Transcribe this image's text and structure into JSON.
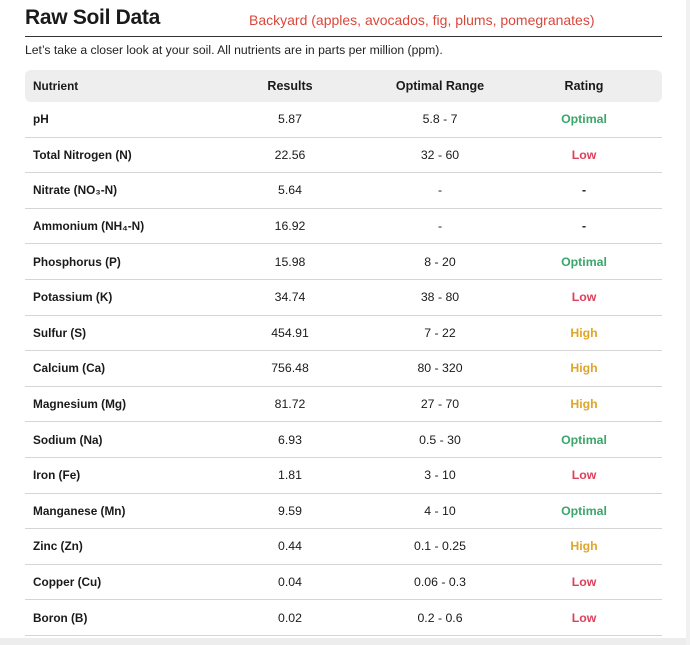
{
  "header": {
    "title": "Raw Soil Data",
    "location": "Backyard (apples, avocados, fig, plums, pomegranates)"
  },
  "intro": "Let’s take a closer look at your soil. All nutrients are in parts per million (ppm).",
  "table": {
    "columns": [
      "Nutrient",
      "Results",
      "Optimal Range",
      "Rating"
    ],
    "rows": [
      {
        "nutrient": "pH",
        "result": "5.87",
        "range": "5.8 - 7",
        "rating": "Optimal"
      },
      {
        "nutrient": "Total Nitrogen (N)",
        "result": "22.56",
        "range": "32 - 60",
        "rating": "Low"
      },
      {
        "nutrient": "Nitrate (NO₃-N)",
        "result": "5.64",
        "range": "-",
        "rating": "-"
      },
      {
        "nutrient": "Ammonium (NH₄-N)",
        "result": "16.92",
        "range": "-",
        "rating": "-"
      },
      {
        "nutrient": "Phosphorus (P)",
        "result": "15.98",
        "range": "8 - 20",
        "rating": "Optimal"
      },
      {
        "nutrient": "Potassium (K)",
        "result": "34.74",
        "range": "38 - 80",
        "rating": "Low"
      },
      {
        "nutrient": "Sulfur (S)",
        "result": "454.91",
        "range": "7 - 22",
        "rating": "High"
      },
      {
        "nutrient": "Calcium (Ca)",
        "result": "756.48",
        "range": "80 - 320",
        "rating": "High"
      },
      {
        "nutrient": "Magnesium (Mg)",
        "result": "81.72",
        "range": "27 - 70",
        "rating": "High"
      },
      {
        "nutrient": "Sodium (Na)",
        "result": "6.93",
        "range": "0.5 - 30",
        "rating": "Optimal"
      },
      {
        "nutrient": "Iron (Fe)",
        "result": "1.81",
        "range": "3 - 10",
        "rating": "Low"
      },
      {
        "nutrient": "Manganese (Mn)",
        "result": "9.59",
        "range": "4 - 10",
        "rating": "Optimal"
      },
      {
        "nutrient": "Zinc (Zn)",
        "result": "0.44",
        "range": "0.1 - 0.25",
        "rating": "High"
      },
      {
        "nutrient": "Copper (Cu)",
        "result": "0.04",
        "range": "0.06 - 0.3",
        "rating": "Low"
      },
      {
        "nutrient": "Boron (B)",
        "result": "0.02",
        "range": "0.2 - 0.6",
        "rating": "Low"
      }
    ]
  },
  "colors": {
    "optimal": "#3aa66a",
    "low": "#df3f5a",
    "high": "#e0a52a",
    "location": "#d9473b"
  }
}
